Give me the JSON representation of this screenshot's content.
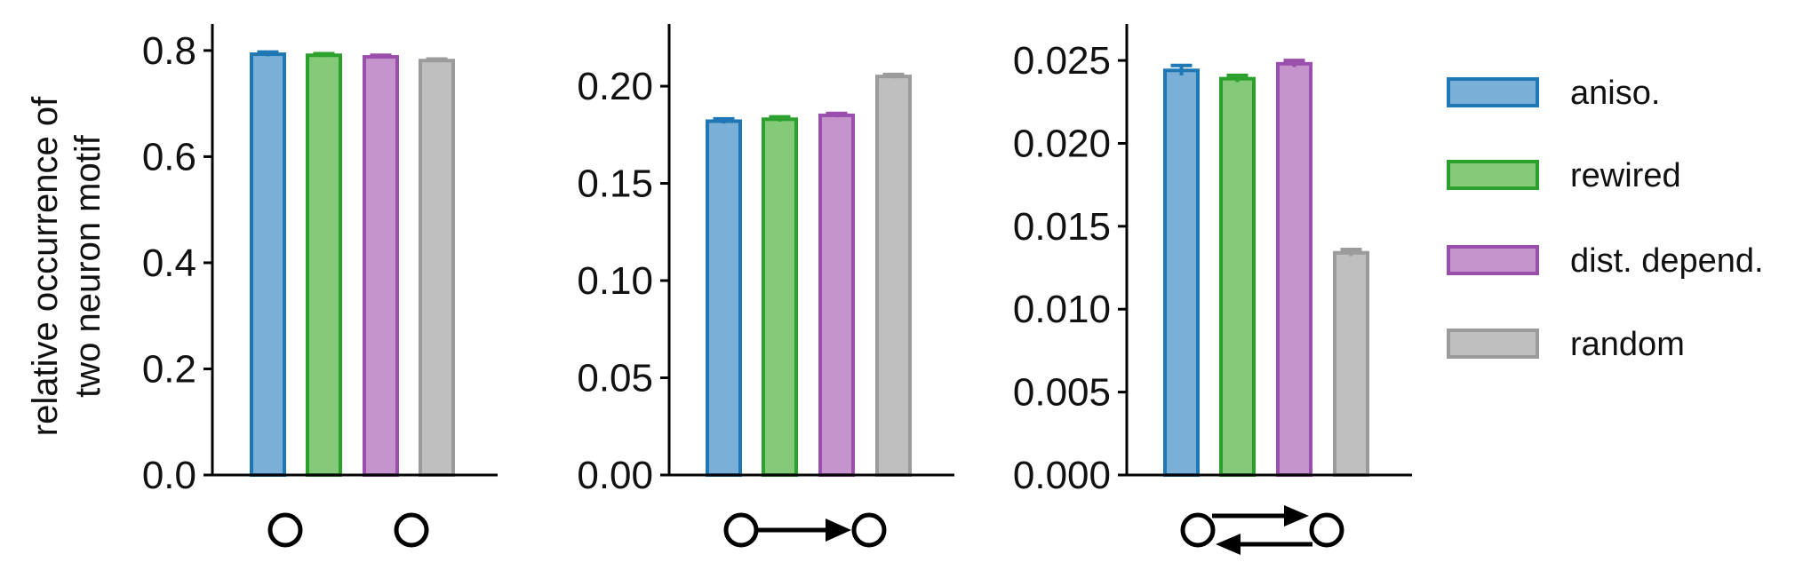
{
  "ylabel_lines": [
    "relative occurrence of",
    "two neuron motif"
  ],
  "series": [
    {
      "name": "aniso.",
      "color": "#1f77b4",
      "fill": "#7aafd8"
    },
    {
      "name": "rewired",
      "color": "#2ca02c",
      "fill": "#84ca78"
    },
    {
      "name": "dist. depend.",
      "color": "#9a4fac",
      "fill": "#c594cc"
    },
    {
      "name": "random",
      "color": "#9b9b9b",
      "fill": "#bfbfbf"
    }
  ],
  "chart_data": [
    {
      "type": "bar",
      "motif": "unconnected",
      "categories": [
        "aniso.",
        "rewired",
        "dist. depend.",
        "random"
      ],
      "values": [
        0.793,
        0.791,
        0.788,
        0.781
      ],
      "errors": [
        0.004,
        0.003,
        0.003,
        0.003
      ],
      "ylim": [
        0,
        0.85
      ],
      "yticks": [
        0.0,
        0.2,
        0.4,
        0.6,
        0.8
      ],
      "ytick_labels": [
        "0.0",
        "0.2",
        "0.4",
        "0.6",
        "0.8"
      ],
      "xlabel": "",
      "ylabel": "relative occurrence of two neuron motif",
      "grid": false
    },
    {
      "type": "bar",
      "motif": "unidirectional",
      "categories": [
        "aniso.",
        "rewired",
        "dist. depend.",
        "random"
      ],
      "values": [
        0.182,
        0.183,
        0.185,
        0.205
      ],
      "errors": [
        0.0012,
        0.0012,
        0.001,
        0.001
      ],
      "ylim": [
        0,
        0.232
      ],
      "yticks": [
        0.0,
        0.05,
        0.1,
        0.15,
        0.2
      ],
      "ytick_labels": [
        "0.00",
        "0.05",
        "0.10",
        "0.15",
        "0.20"
      ],
      "xlabel": "",
      "ylabel": "",
      "grid": false
    },
    {
      "type": "bar",
      "motif": "bidirectional",
      "categories": [
        "aniso.",
        "rewired",
        "dist. depend.",
        "random"
      ],
      "values": [
        0.0244,
        0.0239,
        0.0248,
        0.0134
      ],
      "errors": [
        0.0003,
        0.0002,
        0.0002,
        0.0002
      ],
      "ylim": [
        0,
        0.0272
      ],
      "yticks": [
        0.0,
        0.005,
        0.01,
        0.015,
        0.02,
        0.025
      ],
      "ytick_labels": [
        "0.000",
        "0.005",
        "0.010",
        "0.015",
        "0.020",
        "0.025"
      ],
      "xlabel": "",
      "ylabel": "",
      "grid": false
    }
  ],
  "legend": {
    "placement": "right",
    "entries": [
      "aniso.",
      "rewired",
      "dist. depend.",
      "random"
    ]
  }
}
